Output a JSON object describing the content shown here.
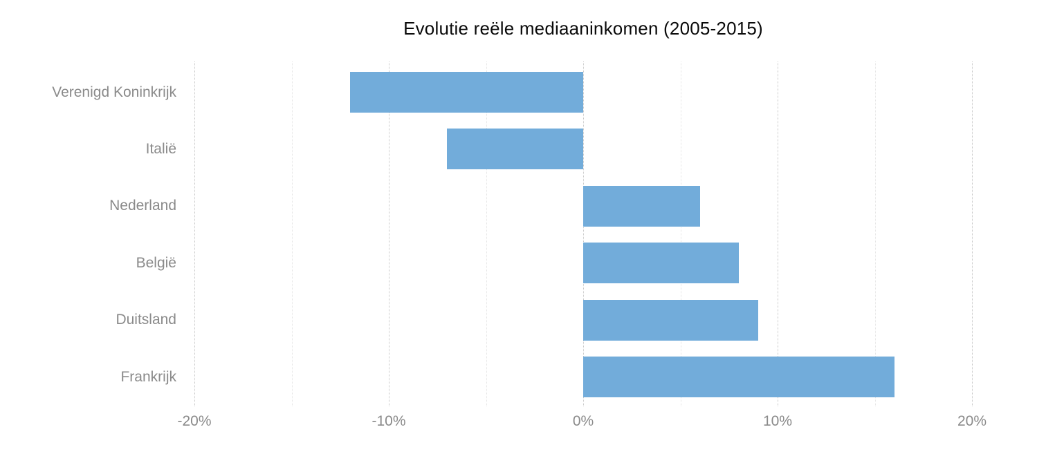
{
  "chart_data": {
    "type": "bar",
    "orientation": "horizontal",
    "title": "Evolutie reële mediaaninkomen (2005-2015)",
    "categories": [
      "Verenigd Koninkrijk",
      "Italië",
      "Nederland",
      "België",
      "Duitsland",
      "Frankrijk"
    ],
    "values": [
      -12,
      -7,
      6,
      8,
      9,
      16
    ],
    "unit": "%",
    "xlabel": "",
    "ylabel": "",
    "xlim": [
      -20,
      20
    ],
    "xticks": [
      -20,
      -10,
      0,
      10,
      20
    ],
    "xtick_labels": [
      "-20%",
      "-10%",
      "0%",
      "10%",
      "20%"
    ],
    "minor_tick_step": 5,
    "grid": "vertical-dotted",
    "legend": "none",
    "colors": {
      "bar": "#72acda",
      "grid_major": "#c6c6c6",
      "grid_minor": "#e4e4e4",
      "category_label": "#8a8a8a",
      "tick_label": "#8a8a8a",
      "title": "#0a0a0a",
      "background": "#ffffff"
    }
  }
}
